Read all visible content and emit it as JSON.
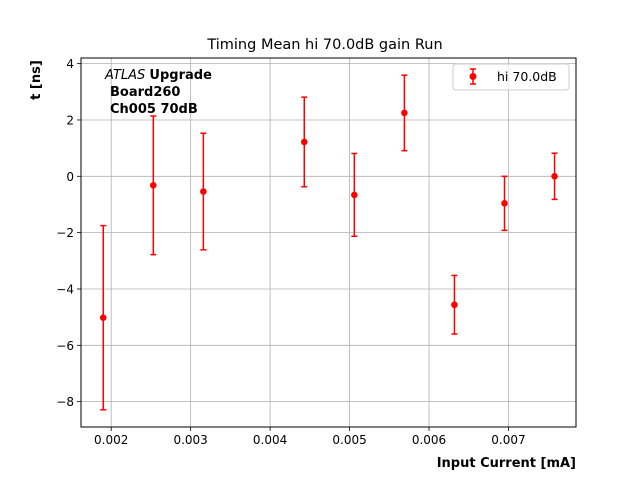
{
  "chart_data": {
    "type": "scatter",
    "title": "Timing Mean hi 70.0dB gain Run",
    "xlabel": "Input Current [mA]",
    "ylabel": "t [ns]",
    "xlim": [
      0.00162,
      0.00785
    ],
    "ylim": [
      -8.9,
      4.2
    ],
    "grid": true,
    "legend_position": "top-right",
    "xticks": [
      0.002,
      0.003,
      0.004,
      0.005,
      0.006,
      0.007
    ],
    "xtick_labels": [
      "0.002",
      "0.003",
      "0.004",
      "0.005",
      "0.006",
      "0.007"
    ],
    "yticks": [
      -8,
      -6,
      -4,
      -2,
      0,
      2,
      4
    ],
    "ytick_labels": [
      "−8",
      "−6",
      "−4",
      "−2",
      "0",
      "2",
      "4"
    ],
    "annotation": {
      "italic_prefix": "ATLAS",
      "bold_suffix": "Upgrade",
      "line2": "Board260",
      "line3": "Ch005 70dB"
    },
    "series": [
      {
        "name": "hi 70.0dB",
        "color": "#ff0000",
        "x": [
          0.0019,
          0.00253,
          0.00316,
          0.00443,
          0.00506,
          0.00569,
          0.00632,
          0.00695,
          0.00758
        ],
        "y": [
          -5.02,
          -0.32,
          -0.54,
          1.22,
          -0.66,
          2.25,
          -4.56,
          -0.96,
          0.0
        ],
        "yerr": [
          3.27,
          2.46,
          2.07,
          1.59,
          1.47,
          1.34,
          1.04,
          0.96,
          0.82
        ]
      }
    ]
  }
}
